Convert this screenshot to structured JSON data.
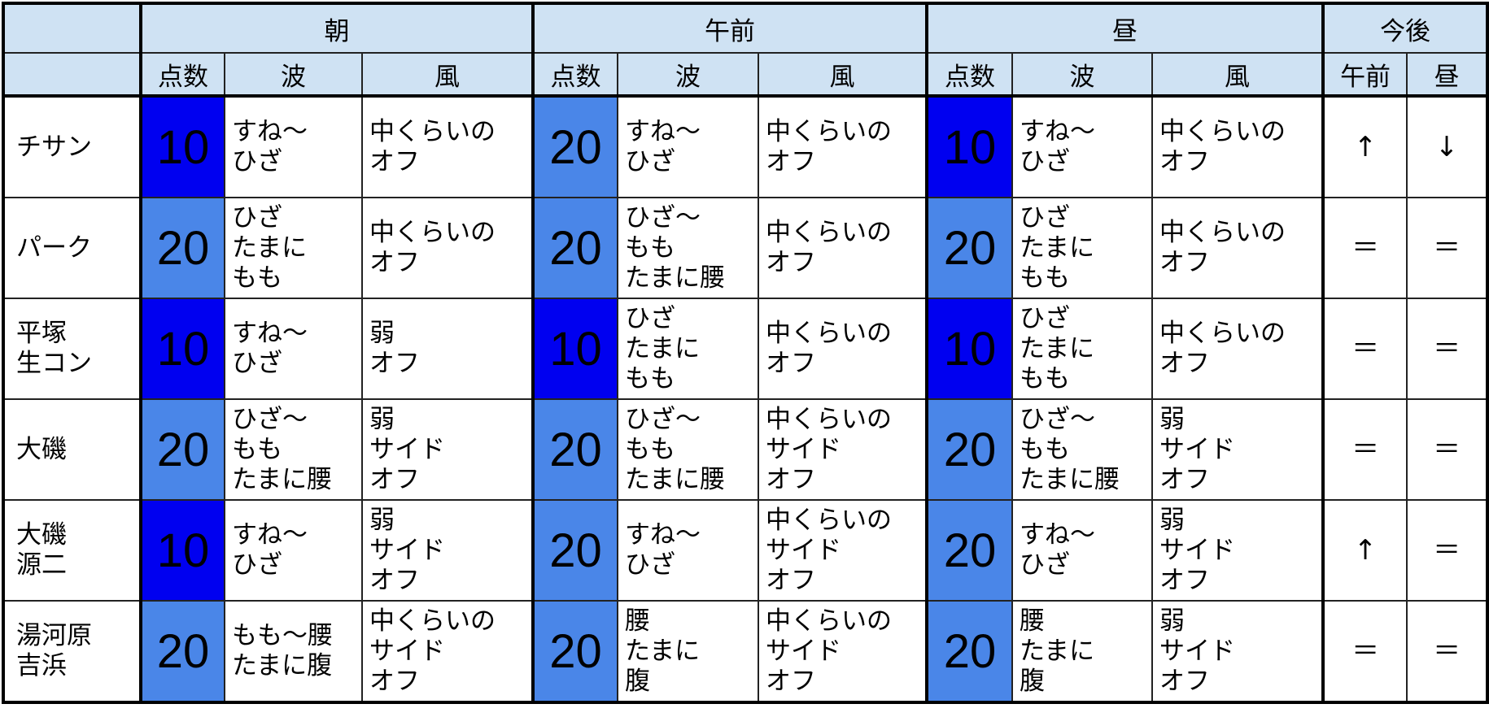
{
  "colors": {
    "score_10": "#0000f0",
    "score_20": "#4a86e8",
    "header_bg": "#cfe2f3"
  },
  "header": {
    "groups": [
      "朝",
      "午前",
      "昼",
      "今後"
    ],
    "sub": {
      "score": "点数",
      "wave": "波",
      "wind": "風",
      "future_am": "午前",
      "future_noon": "昼"
    }
  },
  "rows": [
    {
      "name": "チサン",
      "periods": [
        {
          "score": "10",
          "wave": "すね～\nひざ",
          "wind": "中くらいの\nオフ"
        },
        {
          "score": "20",
          "wave": "すね～\nひざ",
          "wind": "中くらいの\nオフ"
        },
        {
          "score": "10",
          "wave": "すね～\nひざ",
          "wind": "中くらいの\nオフ"
        }
      ],
      "trend": [
        "↑",
        "↓"
      ]
    },
    {
      "name": "パーク",
      "periods": [
        {
          "score": "20",
          "wave": "ひざ\nたまに\nもも",
          "wind": "中くらいの\nオフ"
        },
        {
          "score": "20",
          "wave": "ひざ～\nもも\nたまに腰",
          "wind": "中くらいの\nオフ"
        },
        {
          "score": "20",
          "wave": "ひざ\nたまに\nもも",
          "wind": "中くらいの\nオフ"
        }
      ],
      "trend": [
        "＝",
        "＝"
      ]
    },
    {
      "name": "平塚\n生コン",
      "periods": [
        {
          "score": "10",
          "wave": "すね～\nひざ",
          "wind": "弱\nオフ"
        },
        {
          "score": "10",
          "wave": "ひざ\nたまに\nもも",
          "wind": "中くらいの\nオフ"
        },
        {
          "score": "10",
          "wave": "ひざ\nたまに\nもも",
          "wind": "中くらいの\nオフ"
        }
      ],
      "trend": [
        "＝",
        "＝"
      ]
    },
    {
      "name": "大磯",
      "periods": [
        {
          "score": "20",
          "wave": "ひざ～\nもも\nたまに腰",
          "wind": "弱\nサイド\nオフ"
        },
        {
          "score": "20",
          "wave": "ひざ～\nもも\nたまに腰",
          "wind": "中くらいの\nサイド\nオフ"
        },
        {
          "score": "20",
          "wave": "ひざ～\nもも\nたまに腰",
          "wind": "弱\nサイド\nオフ"
        }
      ],
      "trend": [
        "＝",
        "＝"
      ]
    },
    {
      "name": "大磯\n源二",
      "periods": [
        {
          "score": "10",
          "wave": "すね～\nひざ",
          "wind": "弱\nサイド\nオフ"
        },
        {
          "score": "20",
          "wave": "すね～\nひざ",
          "wind": "中くらいの\nサイド\nオフ"
        },
        {
          "score": "20",
          "wave": "すね～\nひざ",
          "wind": "弱\nサイド\nオフ"
        }
      ],
      "trend": [
        "↑",
        "＝"
      ]
    },
    {
      "name": "湯河原\n吉浜",
      "periods": [
        {
          "score": "20",
          "wave": "もも～腰\nたまに腹",
          "wind": "中くらいの\nサイド\nオフ"
        },
        {
          "score": "20",
          "wave": "腰\nたまに\n腹",
          "wind": "中くらいの\nサイド\nオフ"
        },
        {
          "score": "20",
          "wave": "腰\nたまに\n腹",
          "wind": "弱\nサイド\nオフ"
        }
      ],
      "trend": [
        "＝",
        "＝"
      ]
    }
  ]
}
